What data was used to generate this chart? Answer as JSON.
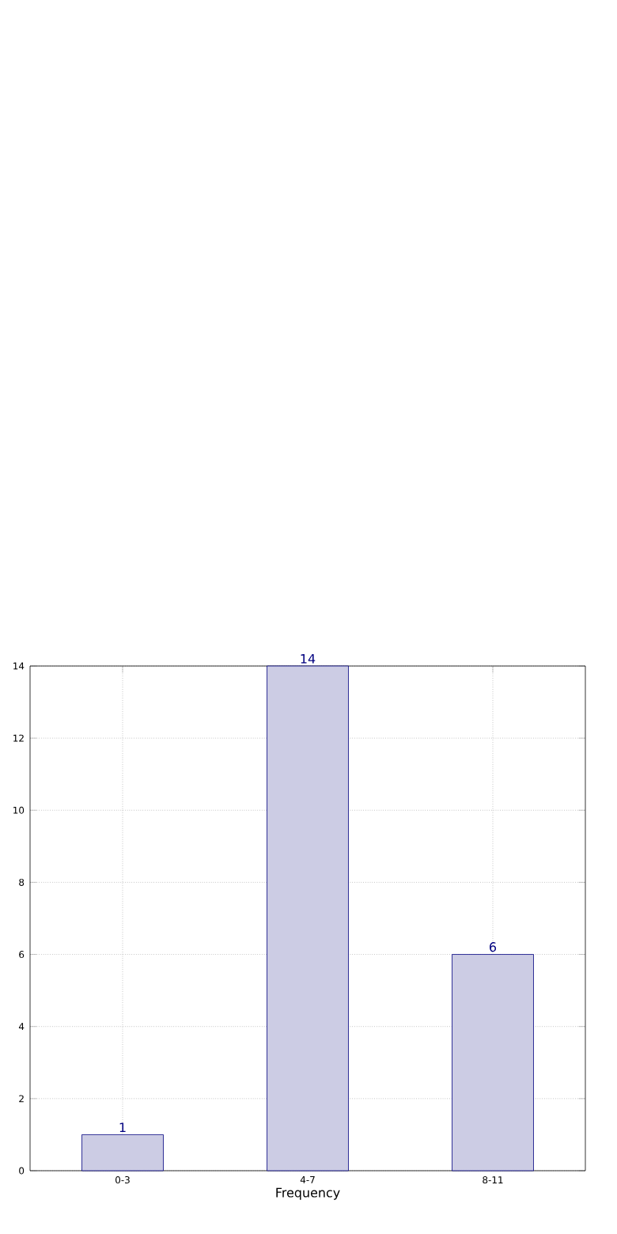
{
  "chart_data": {
    "type": "bar",
    "xlabel": "Frequency",
    "categories": [
      "0-3",
      "4-7",
      "8-11"
    ],
    "series": [
      {
        "color": "#ccccE4",
        "values": [
          1,
          14,
          6
        ]
      }
    ],
    "ylim": [
      0,
      14
    ],
    "yticks": [
      0,
      2,
      4,
      6,
      8,
      10,
      12,
      14
    ],
    "grid": true,
    "data_labels": true
  }
}
